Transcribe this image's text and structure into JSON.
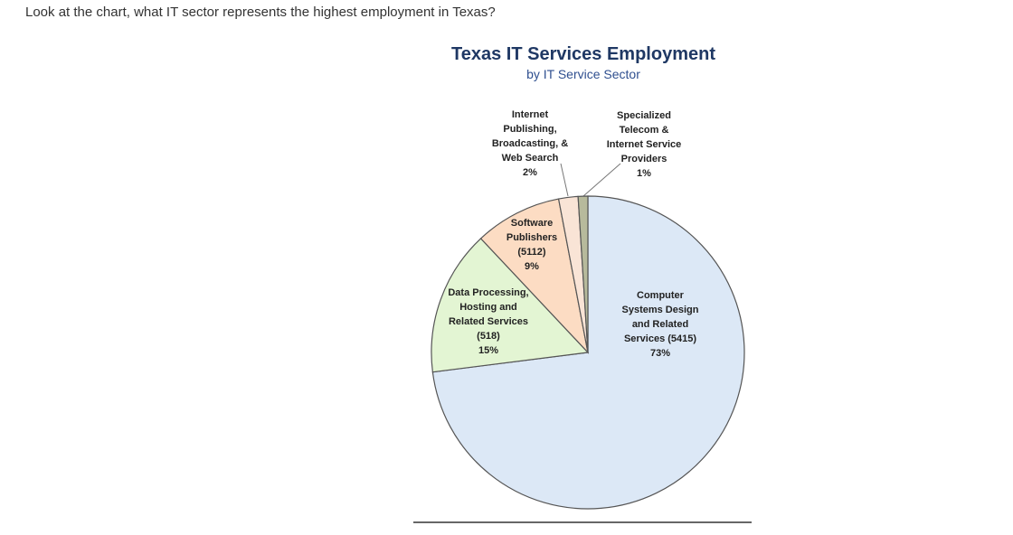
{
  "question": "Look at the chart, what IT sector represents the highest employment in Texas?",
  "chart_data": {
    "type": "pie",
    "title": "Texas IT Services Employment",
    "subtitle": "by IT Service Sector",
    "categories": [
      "Computer\nSystems Design\nand Related\nServices (5415)",
      "Data Processing,\nHosting and\nRelated Services\n(518)",
      "Software\nPublishers\n(5112)",
      "Internet\nPublishing,\nBroadcasting, &\nWeb Search",
      "Specialized\nTelecom &\nInternet Service\nProviders"
    ],
    "values": [
      73,
      15,
      9,
      2,
      1
    ],
    "value_labels": [
      "73%",
      "15%",
      "9%",
      "2%",
      "1%"
    ],
    "colors": [
      "#dce8f6",
      "#e3f5d3",
      "#fcdcc3",
      "#f9e4d6",
      "#b7ba9c"
    ]
  }
}
